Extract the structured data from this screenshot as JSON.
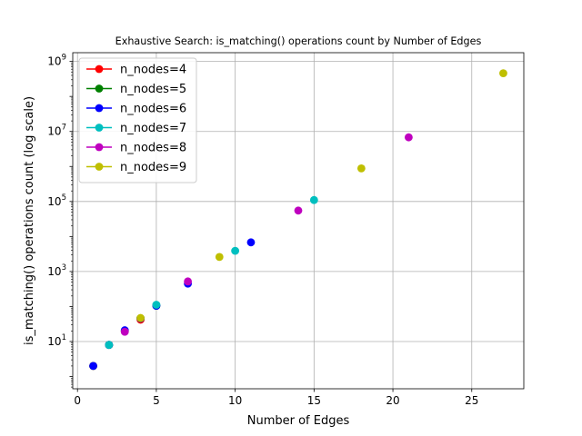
{
  "chart_data": {
    "type": "scatter",
    "title": "Exhaustive Search: is_matching() operations count by Number of Edges",
    "xlabel": "Number of Edges",
    "ylabel": "is_matching() operations count (log scale)",
    "xlim": [
      -0.3,
      28.3
    ],
    "ylim_log10": [
      -0.35,
      9.25
    ],
    "yscale": "log",
    "grid": true,
    "legend_position": "top-left",
    "x_ticks": [
      0,
      5,
      10,
      15,
      20,
      25
    ],
    "y_ticks": [
      {
        "exp": 1,
        "base": "10",
        "sup": "1"
      },
      {
        "exp": 3,
        "base": "10",
        "sup": "3"
      },
      {
        "exp": 5,
        "base": "10",
        "sup": "5"
      },
      {
        "exp": 7,
        "base": "10",
        "sup": "7"
      },
      {
        "exp": 9,
        "base": "10",
        "sup": "9"
      }
    ],
    "series": [
      {
        "name": "n_nodes=4",
        "color": "#ff0000",
        "points": [
          [
            1,
            2
          ],
          [
            2,
            8
          ],
          [
            3,
            20
          ],
          [
            4,
            42
          ]
        ]
      },
      {
        "name": "n_nodes=5",
        "color": "#008000",
        "points": [
          [
            1,
            2
          ],
          [
            2,
            8
          ],
          [
            3,
            20
          ],
          [
            4,
            46
          ],
          [
            5,
            105
          ]
        ]
      },
      {
        "name": "n_nodes=6",
        "color": "#0000ff",
        "points": [
          [
            1,
            2
          ],
          [
            2,
            8
          ],
          [
            3,
            21
          ],
          [
            4,
            46
          ],
          [
            5,
            105
          ],
          [
            7,
            450
          ],
          [
            11,
            6800
          ]
        ]
      },
      {
        "name": "n_nodes=7",
        "color": "#00bfbf",
        "points": [
          [
            2,
            8
          ],
          [
            5,
            112
          ],
          [
            10,
            3900
          ],
          [
            15,
            110000
          ]
        ]
      },
      {
        "name": "n_nodes=8",
        "color": "#bf00bf",
        "points": [
          [
            3,
            19
          ],
          [
            7,
            520
          ],
          [
            14,
            55000
          ],
          [
            21,
            6800000
          ]
        ]
      },
      {
        "name": "n_nodes=9",
        "color": "#bfbf00",
        "points": [
          [
            4,
            47
          ],
          [
            9,
            2600
          ],
          [
            18,
            880000
          ],
          [
            27,
            460000000
          ]
        ]
      }
    ]
  }
}
